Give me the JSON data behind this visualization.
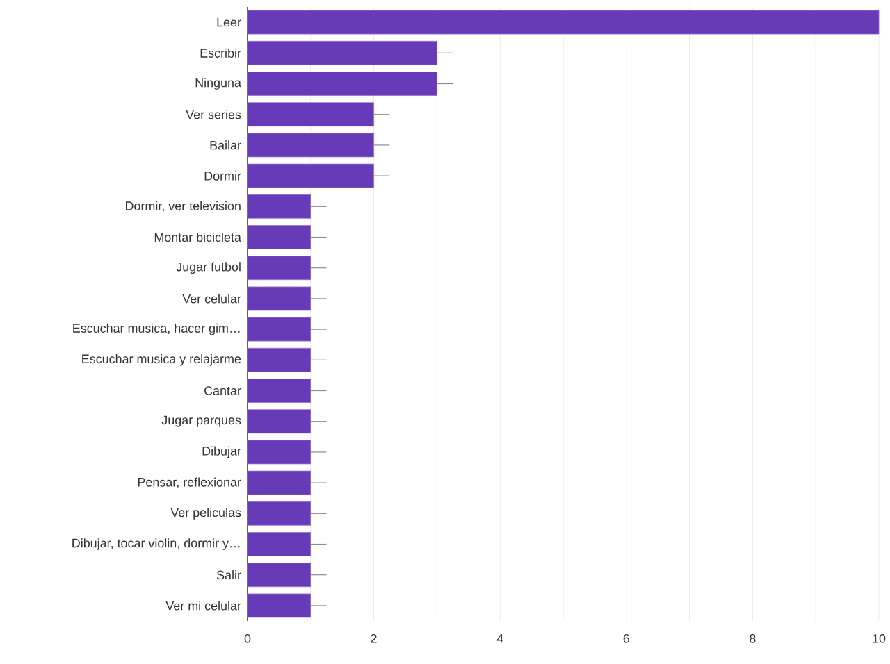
{
  "chart_data": {
    "type": "bar",
    "orientation": "horizontal",
    "categories": [
      "Leer",
      "Escribir",
      "Ninguna",
      "Ver series",
      "Bailar",
      "Dormir",
      "Dormir, ver television",
      "Montar bicicleta",
      "Jugar futbol",
      "Ver celular",
      "Escuchar musica, hacer gim…",
      "Escuchar musica y relajarme",
      "Cantar",
      "Jugar parques",
      "Dibujar",
      "Pensar, reflexionar",
      "Ver peliculas",
      "Dibujar, tocar violin, dormir y…",
      "Salir",
      "Ver mi celular"
    ],
    "values": [
      10,
      3,
      3,
      2,
      2,
      2,
      1,
      1,
      1,
      1,
      1,
      1,
      1,
      1,
      1,
      1,
      1,
      1,
      1,
      1
    ],
    "errors": [
      null,
      0.25,
      0.25,
      0.25,
      0.25,
      0.25,
      0.25,
      0.25,
      0.25,
      0.25,
      0.25,
      0.25,
      0.25,
      0.25,
      0.25,
      0.25,
      0.25,
      0.25,
      0.25,
      0.25
    ],
    "color": "#673ab7",
    "xlim": [
      0,
      10
    ],
    "xticks": [
      0,
      {
        "value": 1,
        "label": null
      },
      2,
      {
        "value": 3,
        "label": null
      },
      4,
      {
        "value": 5,
        "label": null
      },
      6,
      {
        "value": 7,
        "label": null
      },
      8,
      {
        "value": 9,
        "label": null
      },
      10
    ],
    "grid": "x"
  }
}
